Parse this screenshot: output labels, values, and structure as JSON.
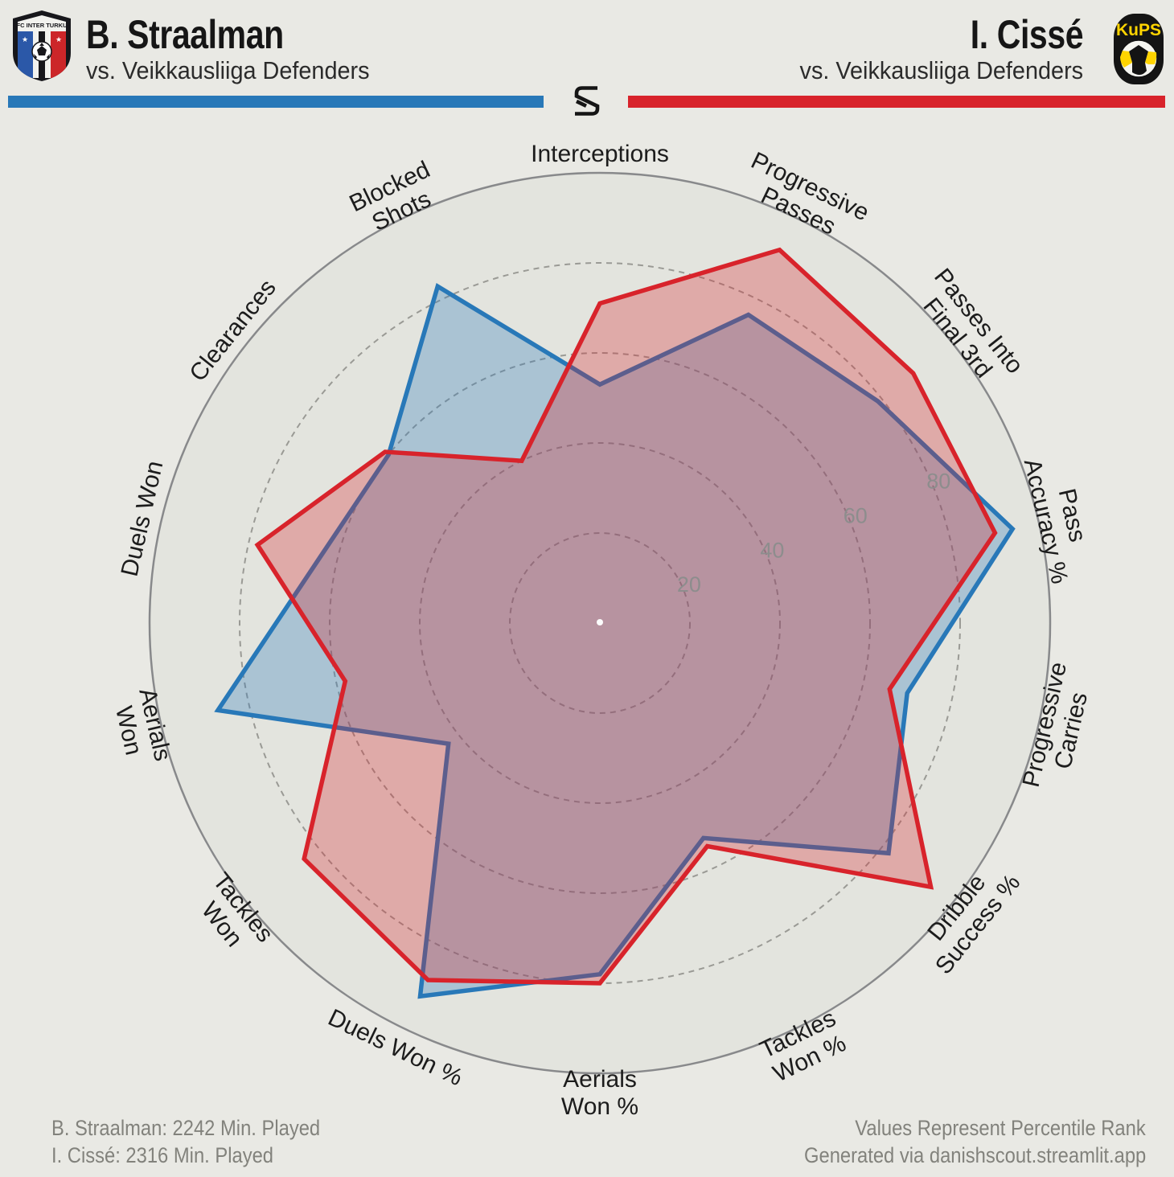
{
  "header": {
    "left": {
      "title": "B. Straalman",
      "subtitle": "vs. Veikkausliiga Defenders"
    },
    "right": {
      "title": "I. Cissé",
      "subtitle": "vs. Veikkausliiga Defenders"
    },
    "inter_logo_text": "FC INTER TURKU",
    "kups_logo_text": "KuPS",
    "accent_blue": "#2878b8",
    "accent_red": "#d8232b"
  },
  "footer": {
    "left_line1": "B. Straalman: 2242 Min. Played",
    "left_line2": "I. Cissé: 2316 Min. Played",
    "right_line1": "Values Represent Percentile Rank",
    "right_line2": "Generated via danishscout.streamlit.app"
  },
  "chart_data": {
    "type": "radar",
    "title": "B. Straalman vs. I. Cissé — percentile rank comparison vs. Veikkausliiga Defenders",
    "categories": [
      "Interceptions",
      "Progressive\nPasses",
      "Passes Into\nFinal 3rd",
      "Pass\nAccuracy %",
      "Progressive\nCarries",
      "Dribble\nSuccess %",
      "Tackles\nWon %",
      "Aerials\nWon %",
      "Duels Won %",
      "Tackles\nWon",
      "Aerials\nWon",
      "Duels Won",
      "Clearances",
      "Blocked\nShots"
    ],
    "series": [
      {
        "name": "B. Straalman",
        "color": "#2878b8",
        "values": [
          53,
          76,
          79,
          94,
          70,
          82,
          53,
          78,
          92,
          43,
          87,
          64,
          60,
          83
        ]
      },
      {
        "name": "I. Cissé",
        "color": "#d8232b",
        "values": [
          71,
          92,
          89,
          90,
          66,
          94,
          55,
          80,
          88,
          84,
          58,
          78,
          61,
          40
        ]
      }
    ],
    "rlim": [
      0,
      100
    ],
    "rticks": [
      20,
      40,
      60,
      80
    ],
    "tick_label_angle_deg": 67.5,
    "start": "top",
    "direction": "clockwise",
    "grid": "dashed-circles",
    "legend_position": "header-bars",
    "background": "#e9e9e4",
    "plot_fill": "#e3e4de",
    "values_note": "percentile ranks"
  }
}
